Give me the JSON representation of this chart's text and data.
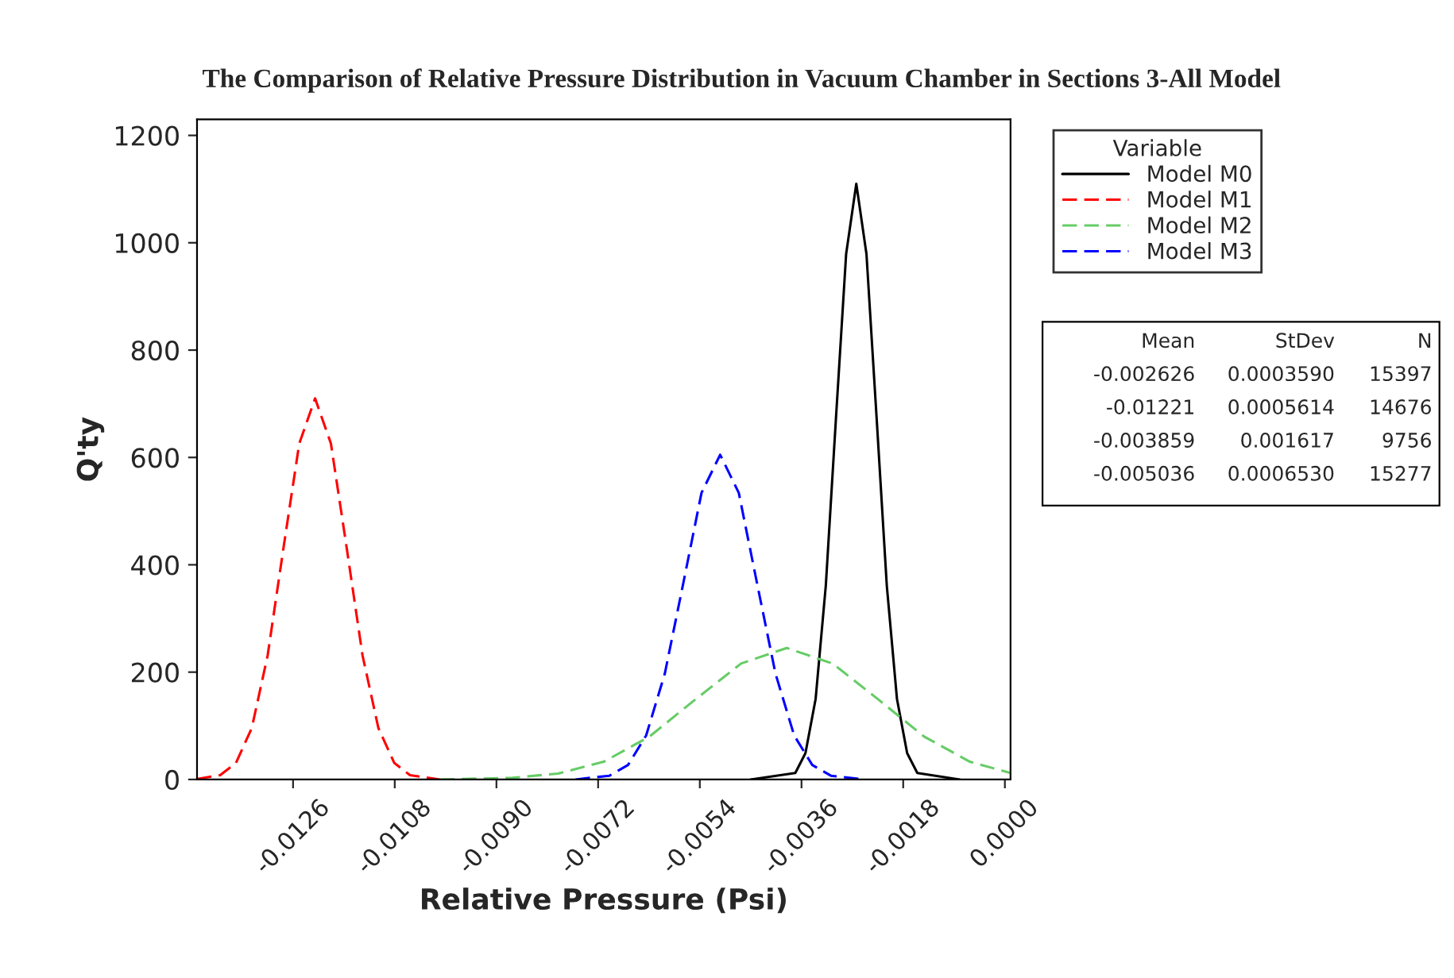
{
  "chart_data": {
    "type": "line",
    "title": "The Comparison of Relative Pressure Distribution in Vacuum Chamber in Sections 3-All Model",
    "xlabel": "Relative Pressure (Psi)",
    "ylabel": "Q'ty",
    "legend_title": "Variable",
    "xlim": [
      -0.0143,
      0.0001
    ],
    "xticks": [
      {
        "value": -0.0126,
        "label": "-0.0126"
      },
      {
        "value": -0.0108,
        "label": "-0.0108"
      },
      {
        "value": -0.009,
        "label": "-0.0090"
      },
      {
        "value": -0.0072,
        "label": "-0.0072"
      },
      {
        "value": -0.0054,
        "label": "-0.0054"
      },
      {
        "value": -0.0036,
        "label": "-0.0036"
      },
      {
        "value": -0.0018,
        "label": "-0.0018"
      },
      {
        "value": 0.0,
        "label": "0.0000"
      }
    ],
    "ylim": [
      0,
      1230
    ],
    "yticks": [
      0,
      200,
      400,
      600,
      800,
      1000,
      1200
    ],
    "grid": false,
    "legend": "right",
    "marker": "none",
    "series": [
      {
        "name": "Model M0",
        "color": "#000000",
        "line_style": "solid",
        "x": [
          -0.0045,
          -0.00371,
          -0.00353,
          -0.00335,
          -0.00317,
          -0.00299,
          -0.00281,
          -0.00263,
          -0.00245,
          -0.00227,
          -0.00209,
          -0.00191,
          -0.00173,
          -0.00155,
          -0.0008
        ],
        "values": [
          0,
          12,
          49,
          150,
          361,
          673,
          979,
          1110,
          979,
          673,
          361,
          150,
          49,
          12,
          0
        ]
      },
      {
        "name": "Model M1",
        "color": "#ff0000",
        "line_style": "dashed",
        "x": [
          -0.0143,
          -0.01389,
          -0.01361,
          -0.01333,
          -0.01305,
          -0.01277,
          -0.01249,
          -0.01221,
          -0.01193,
          -0.01165,
          -0.01137,
          -0.01109,
          -0.01081,
          -0.01053,
          -0.01
        ],
        "values": [
          1,
          8,
          31,
          96,
          231,
          431,
          626,
          710,
          626,
          431,
          231,
          96,
          31,
          8,
          0
        ]
      },
      {
        "name": "Model M2",
        "color": "#66cc66",
        "line_style": "dashed",
        "x": [
          -0.01,
          -0.00872,
          -0.00791,
          -0.0071,
          -0.00629,
          -0.00548,
          -0.00467,
          -0.00386,
          -0.00305,
          -0.00224,
          -0.00143,
          -0.00062,
          0.0001
        ],
        "values": [
          0,
          3,
          11,
          33,
          80,
          149,
          216,
          245,
          216,
          149,
          80,
          33,
          12
        ]
      },
      {
        "name": "Model M3",
        "color": "#0000ff",
        "line_style": "dashed",
        "x": [
          -0.0076,
          -0.007,
          -0.00667,
          -0.00635,
          -0.00602,
          -0.00569,
          -0.00537,
          -0.00504,
          -0.00471,
          -0.00439,
          -0.00406,
          -0.00373,
          -0.00341,
          -0.00308,
          -0.0025
        ],
        "values": [
          0,
          7,
          27,
          82,
          197,
          367,
          534,
          605,
          534,
          367,
          197,
          82,
          27,
          7,
          0
        ]
      }
    ],
    "annotations": [
      "Mean",
      "StDev",
      "N",
      "-0.002626",
      "0.0003590",
      "15397",
      "-0.01221",
      "0.0005614",
      "14676",
      "-0.003859",
      "0.001617",
      "9756",
      "-0.005036",
      "0.0006530",
      "15277"
    ]
  }
}
